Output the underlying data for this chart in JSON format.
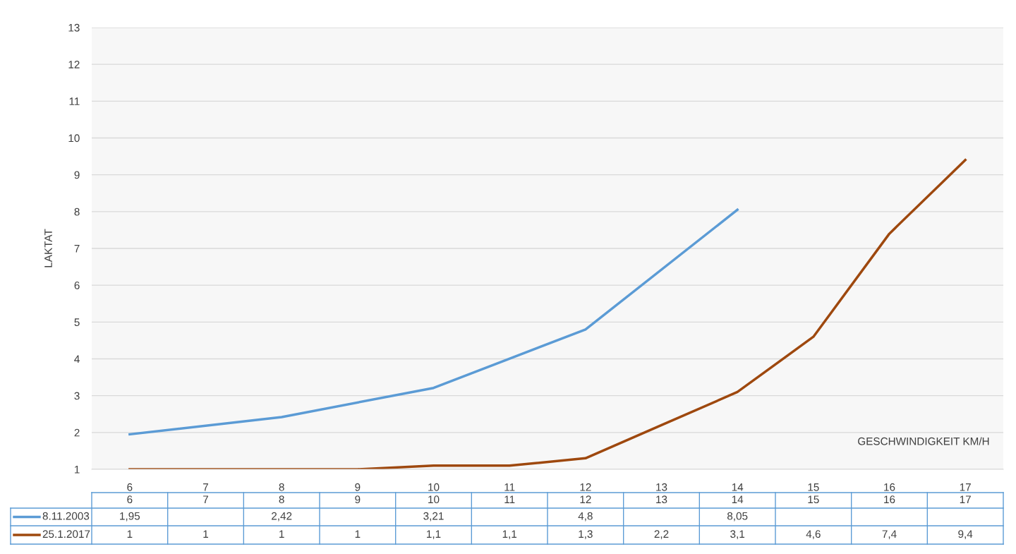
{
  "chart_data": {
    "type": "line",
    "ylabel": "LAKTAT",
    "xlabel": "GESCHWINDIGKEIT KM/H",
    "categories": [
      "6",
      "7",
      "8",
      "9",
      "10",
      "11",
      "12",
      "13",
      "14",
      "15",
      "16",
      "17"
    ],
    "series": [
      {
        "name": "8.11.2003",
        "color": "#5b9bd5",
        "values": [
          1.95,
          null,
          2.42,
          null,
          3.21,
          null,
          4.8,
          null,
          8.05,
          null,
          null,
          null
        ],
        "value_labels": [
          "1,95",
          null,
          "2,42",
          null,
          "3,21",
          null,
          "4,8",
          null,
          "8,05",
          null,
          null,
          null
        ]
      },
      {
        "name": "25.1.2017",
        "color": "#9e480e",
        "values": [
          1,
          1,
          1,
          1,
          1.1,
          1.1,
          1.3,
          2.2,
          3.1,
          4.6,
          7.4,
          9.4
        ],
        "value_labels": [
          "1",
          "1",
          "1",
          "1",
          "1,1",
          "1,1",
          "1,3",
          "2,2",
          "3,1",
          "4,6",
          "7,4",
          "9,4"
        ]
      }
    ],
    "ylim": [
      1,
      13
    ],
    "yticks": [
      1,
      2,
      3,
      4,
      5,
      6,
      7,
      8,
      9,
      10,
      11,
      12,
      13
    ],
    "grid": "y",
    "legend": "bottom",
    "marker": "none",
    "line_style": "solid"
  }
}
